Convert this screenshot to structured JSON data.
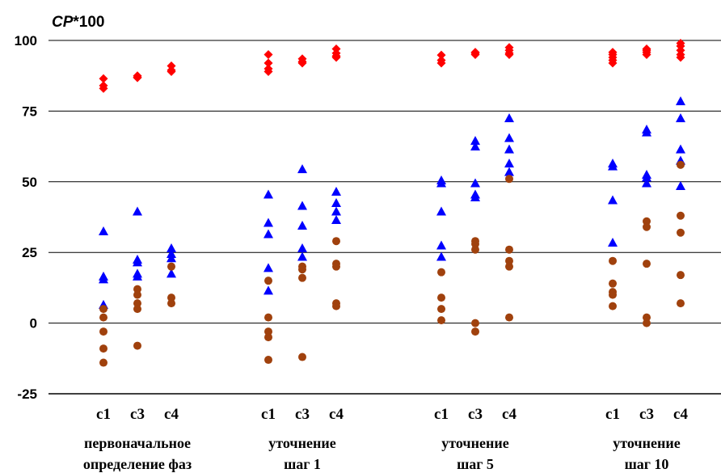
{
  "chart_data": {
    "type": "scatter",
    "title": "",
    "ylabel": {
      "italic": "CP",
      "rest": "*100"
    },
    "xlabel": "",
    "ylim": [
      -25,
      100
    ],
    "yticks": [
      100,
      75,
      50,
      25,
      0,
      -25
    ],
    "grid": true,
    "legend": "none",
    "groups": [
      {
        "label_lines": [
          "первоначальное",
          "определение фаз"
        ],
        "categories": [
          "c1",
          "c3",
          "c4"
        ]
      },
      {
        "label_lines": [
          "уточнение",
          "шаг 1"
        ],
        "categories": [
          "c1",
          "c3",
          "c4"
        ]
      },
      {
        "label_lines": [
          "уточнение",
          "шаг 5"
        ],
        "categories": [
          "c1",
          "c3",
          "c4"
        ]
      },
      {
        "label_lines": [
          "уточнение",
          "шаг 10"
        ],
        "categories": [
          "c1",
          "c3",
          "c4"
        ]
      }
    ],
    "series": [
      {
        "marker": "diamond",
        "color": "#ff0000",
        "values": [
          [
            [
              86.5,
              84,
              83
            ],
            [
              87.5,
              87,
              86.8
            ],
            [
              91,
              89.5,
              89
            ]
          ],
          [
            [
              95,
              92,
              90,
              89
            ],
            [
              93.5,
              92.5,
              92
            ],
            [
              97,
              95.5,
              94.5,
              94
            ]
          ],
          [
            [
              94.8,
              93,
              92
            ],
            [
              95.8,
              95.5,
              95
            ],
            [
              97.5,
              96.5,
              95.5,
              95
            ]
          ],
          [
            [
              95.8,
              95,
              94,
              93,
              92
            ],
            [
              97,
              96.5,
              95.8,
              95
            ],
            [
              99,
              98,
              96.5,
              95,
              94
            ]
          ]
        ]
      },
      {
        "marker": "triangle",
        "color": "#0000ff",
        "values": [
          [
            [
              32.5,
              16.5,
              15.5,
              6.5
            ],
            [
              39.5,
              22.5,
              21.5,
              17.5,
              16.5
            ],
            [
              26.5,
              24.5,
              23,
              17.5
            ]
          ],
          [
            [
              45.5,
              35.5,
              31.5,
              19.5,
              11.5
            ],
            [
              54.5,
              41.5,
              34.5,
              26.5,
              23.5
            ],
            [
              46.5,
              42.5,
              39.5,
              36.5
            ]
          ],
          [
            [
              50.5,
              49.5,
              39.5,
              27.5,
              23.5
            ],
            [
              64.5,
              62.5,
              49.5,
              45.5,
              44.5
            ],
            [
              72.5,
              65.5,
              61.5,
              56.5,
              53.5
            ]
          ],
          [
            [
              56.5,
              55.5,
              43.5,
              28.5
            ],
            [
              68.5,
              67.5,
              52.5,
              51.5,
              49.5
            ],
            [
              78.5,
              72.5,
              61.5,
              57.5,
              48.5
            ]
          ]
        ]
      },
      {
        "marker": "circle",
        "color": "#a0410d",
        "values": [
          [
            [
              5,
              2,
              -3,
              -9,
              -14
            ],
            [
              12,
              10,
              7,
              5,
              -8
            ],
            [
              20,
              9,
              7
            ]
          ],
          [
            [
              15,
              2,
              -3,
              -5,
              -13
            ],
            [
              20,
              19,
              16,
              -12
            ],
            [
              29,
              21,
              20,
              7,
              6
            ]
          ],
          [
            [
              18,
              9,
              5,
              1
            ],
            [
              29,
              28,
              26,
              0,
              -3
            ],
            [
              51,
              26,
              22,
              20,
              2
            ]
          ],
          [
            [
              22,
              14,
              11,
              10,
              6
            ],
            [
              36,
              34,
              21,
              2,
              0
            ],
            [
              56,
              38,
              32,
              17,
              7
            ]
          ]
        ]
      }
    ]
  }
}
